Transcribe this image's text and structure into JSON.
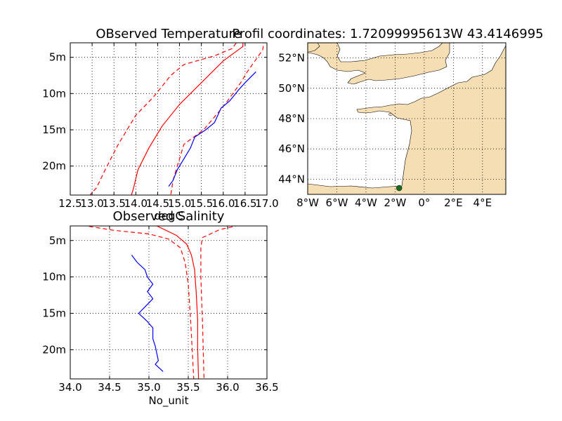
{
  "chart_data": [
    {
      "type": "line",
      "title": "OBserved Temperature",
      "xlabel": "degC",
      "ylabel": "",
      "xlim": [
        12.5,
        17.0
      ],
      "ylim": [
        24,
        3
      ],
      "xticks": [
        "12.5",
        "13.0",
        "13.5",
        "14.0",
        "14.5",
        "15.0",
        "15.5",
        "16.0",
        "16.5",
        "17.0"
      ],
      "xtick_values": [
        12.5,
        13.0,
        13.5,
        14.0,
        14.5,
        15.0,
        15.5,
        16.0,
        16.5,
        17.0
      ],
      "yticks": [
        "5m",
        "10m",
        "15m",
        "20m"
      ],
      "ytick_values": [
        5,
        10,
        15,
        20
      ],
      "grid": true,
      "series": [
        {
          "color": "#ff0000",
          "style": "solid",
          "points": [
            [
              16.45,
              2.5
            ],
            [
              16.45,
              3.5
            ],
            [
              16.0,
              5.5
            ],
            [
              15.5,
              8.5
            ],
            [
              15.0,
              11.5
            ],
            [
              14.6,
              14.5
            ],
            [
              14.3,
              17.5
            ],
            [
              14.05,
              20.5
            ],
            [
              13.95,
              23.0
            ],
            [
              13.9,
              24.0
            ]
          ]
        },
        {
          "color": "#ff0000",
          "style": "dashed",
          "points": [
            [
              16.3,
              3.0
            ],
            [
              16.2,
              3.8
            ],
            [
              15.8,
              4.8
            ],
            [
              15.1,
              6.0
            ],
            [
              14.8,
              7.5
            ],
            [
              14.4,
              10.5
            ],
            [
              14.0,
              13.0
            ],
            [
              13.6,
              17.0
            ],
            [
              13.3,
              20.5
            ],
            [
              13.1,
              23.0
            ],
            [
              12.95,
              24.0
            ]
          ]
        },
        {
          "color": "#ff0000",
          "style": "dashed",
          "points": [
            [
              16.2,
              2.5
            ],
            [
              16.25,
              3.5
            ]
          ]
        },
        {
          "color": "#ff0000",
          "style": "dashed",
          "points": [
            [
              16.95,
              2.5
            ],
            [
              16.9,
              4.0
            ],
            [
              16.55,
              7.0
            ],
            [
              16.4,
              8.5
            ],
            [
              16.1,
              11.0
            ],
            [
              15.9,
              12.5
            ],
            [
              15.55,
              15.0
            ],
            [
              15.1,
              17.0
            ],
            [
              14.95,
              20.0
            ],
            [
              14.85,
              22.0
            ],
            [
              14.8,
              24.0
            ]
          ]
        },
        {
          "color": "#0000ff",
          "style": "solid",
          "points": [
            [
              16.75,
              7.0
            ],
            [
              16.5,
              8.5
            ],
            [
              16.35,
              9.5
            ],
            [
              16.15,
              11.0
            ],
            [
              15.95,
              12.0
            ],
            [
              15.8,
              14.0
            ],
            [
              15.6,
              15.0
            ],
            [
              15.35,
              16.0
            ],
            [
              15.25,
              17.5
            ],
            [
              15.1,
              19.0
            ],
            [
              14.95,
              20.5
            ],
            [
              14.85,
              22.0
            ],
            [
              14.75,
              22.8
            ]
          ]
        }
      ]
    },
    {
      "type": "line",
      "title": "Observed Salinity",
      "xlabel": "No_unit",
      "ylabel": "",
      "xlim": [
        34.0,
        36.5
      ],
      "ylim": [
        24,
        3
      ],
      "xticks": [
        "34.0",
        "34.5",
        "35.0",
        "35.5",
        "36.0",
        "36.5"
      ],
      "xtick_values": [
        34.0,
        34.5,
        35.0,
        35.5,
        36.0,
        36.5
      ],
      "yticks": [
        "5m",
        "10m",
        "15m",
        "20m"
      ],
      "ytick_values": [
        5,
        10,
        15,
        20
      ],
      "grid": true,
      "series": [
        {
          "color": "#ff0000",
          "style": "solid",
          "points": [
            [
              35.1,
              3.0
            ],
            [
              35.35,
              4.3
            ],
            [
              35.48,
              5.5
            ],
            [
              35.54,
              7.0
            ],
            [
              35.58,
              9.0
            ],
            [
              35.6,
              12.0
            ],
            [
              35.62,
              16.0
            ],
            [
              35.62,
              20.0
            ],
            [
              35.63,
              24.0
            ]
          ]
        },
        {
          "color": "#ff0000",
          "style": "dashed",
          "points": [
            [
              34.15,
              2.9
            ],
            [
              34.55,
              3.6
            ],
            [
              35.0,
              4.1
            ],
            [
              35.25,
              4.8
            ],
            [
              35.4,
              6.0
            ],
            [
              35.46,
              8.0
            ],
            [
              35.5,
              11.0
            ],
            [
              35.53,
              16.0
            ],
            [
              35.55,
              20.0
            ],
            [
              35.57,
              24.0
            ]
          ]
        },
        {
          "color": "#ff0000",
          "style": "dashed",
          "points": [
            [
              36.15,
              2.9
            ],
            [
              35.9,
              3.5
            ],
            [
              35.68,
              4.6
            ],
            [
              35.66,
              6.0
            ],
            [
              35.66,
              10.0
            ],
            [
              35.68,
              16.0
            ],
            [
              35.69,
              20.0
            ],
            [
              35.7,
              24.0
            ]
          ]
        },
        {
          "color": "#0000ff",
          "style": "solid",
          "points": [
            [
              34.78,
              7.0
            ],
            [
              34.85,
              8.0
            ],
            [
              34.95,
              9.0
            ],
            [
              34.98,
              10.0
            ],
            [
              35.05,
              11.0
            ],
            [
              34.98,
              12.0
            ],
            [
              35.05,
              13.0
            ],
            [
              34.87,
              15.0
            ],
            [
              34.97,
              16.0
            ],
            [
              35.05,
              17.0
            ],
            [
              35.05,
              18.5
            ],
            [
              35.08,
              19.5
            ],
            [
              35.1,
              20.5
            ],
            [
              35.12,
              21.5
            ],
            [
              35.08,
              22.0
            ],
            [
              35.18,
              23.0
            ]
          ]
        }
      ]
    },
    {
      "type": "map",
      "title": "Profil coordinates: 1.72099995613W 43.4146995",
      "lon_range": [
        -8,
        5.6
      ],
      "lat_range": [
        43,
        53
      ],
      "xticks": [
        "8°W",
        "6°W",
        "4°W",
        "2°W",
        "0°",
        "2°E",
        "4°E"
      ],
      "xtick_values": [
        -8,
        -6,
        -4,
        -2,
        0,
        2,
        4
      ],
      "yticks": [
        "44°N",
        "46°N",
        "48°N",
        "50°N",
        "52°N"
      ],
      "ytick_values": [
        44,
        46,
        48,
        50,
        52
      ],
      "grid": true,
      "land_color": "#f5deb3",
      "sea_color": "#ffffff",
      "marker": {
        "lon": -1.721,
        "lat": 43.4147,
        "color": "#1a6b1a"
      }
    }
  ]
}
